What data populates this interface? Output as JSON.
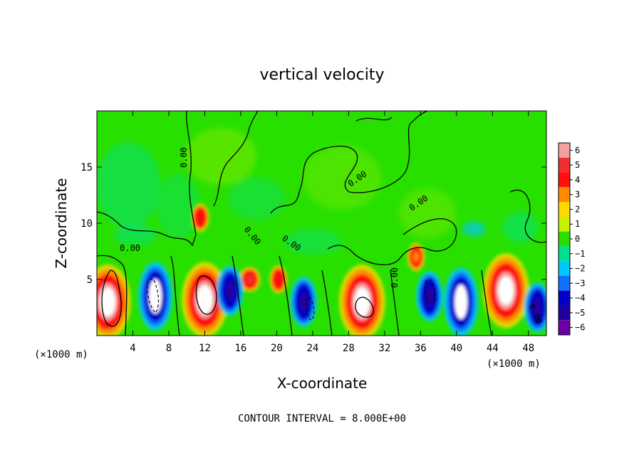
{
  "chart_data": {
    "type": "heatmap",
    "title": "vertical velocity",
    "xlabel": "X-coordinate",
    "ylabel": "Z-coordinate",
    "x_unit": "(×1000 m)",
    "xlim": [
      0,
      50
    ],
    "ylim": [
      0,
      20
    ],
    "x_ticks": [
      4,
      8,
      12,
      16,
      20,
      24,
      28,
      32,
      36,
      40,
      44,
      48
    ],
    "y_ticks": [
      5,
      10,
      15
    ],
    "colorbar": {
      "levels": [
        6,
        5,
        4,
        3,
        2,
        1,
        0,
        -1,
        -2,
        -3,
        -4,
        -5,
        -6
      ],
      "colors": [
        "#f4a0a0",
        "#f03030",
        "#ff1010",
        "#ff8c00",
        "#ffd800",
        "#c8f000",
        "#28e000",
        "#00e090",
        "#00c8ff",
        "#1070ff",
        "#0000c8",
        "#2000a0",
        "#6a00a8"
      ]
    },
    "contour_labels": [
      "0.00",
      "0.00",
      "0.00",
      "0.00",
      "0.00",
      "0.00",
      "0.00",
      "0.00"
    ],
    "updrafts": [
      {
        "x": 1.2,
        "z": 3.0,
        "w": 6
      },
      {
        "x": 12.0,
        "z": 3.2,
        "w": 6
      },
      {
        "x": 11.5,
        "z": 10.5,
        "w": 4
      },
      {
        "x": 17.0,
        "z": 5.0,
        "w": 5
      },
      {
        "x": 20.2,
        "z": 5.0,
        "w": 4
      },
      {
        "x": 29.5,
        "z": 3.0,
        "w": 6
      },
      {
        "x": 35.5,
        "z": 7.0,
        "w": 3
      },
      {
        "x": 45.5,
        "z": 4.0,
        "w": 6
      }
    ],
    "downdrafts": [
      {
        "x": 6.5,
        "z": 3.5,
        "w": -6
      },
      {
        "x": 14.8,
        "z": 4.0,
        "w": -4
      },
      {
        "x": 23.0,
        "z": 3.0,
        "w": -5
      },
      {
        "x": 37.0,
        "z": 3.5,
        "w": -5
      },
      {
        "x": 40.5,
        "z": 3.0,
        "w": -6
      },
      {
        "x": 49.0,
        "z": 2.5,
        "w": -5
      }
    ]
  },
  "footer": "CONTOUR INTERVAL = 8.000E+00"
}
